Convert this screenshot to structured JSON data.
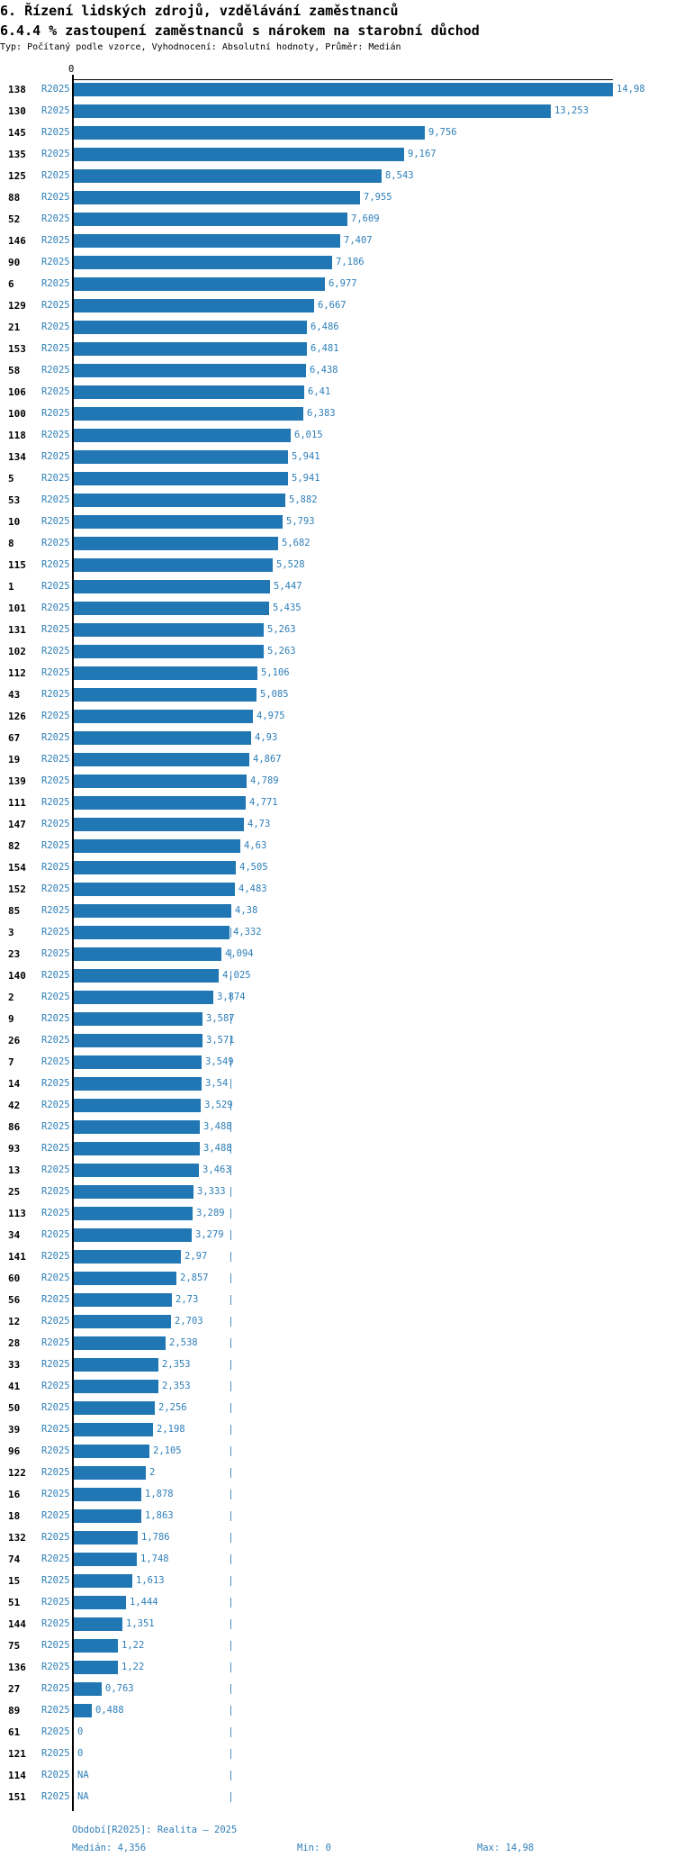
{
  "header": {
    "title_line1": "6. Řízení lidských zdrojů, vzdělávání zaměstnanců",
    "title_line2": "6.4.4 % zastoupení zaměstnanců s nárokem na starobní důchod",
    "meta": "Typ: Počítaný podle vzorce, Vyhodnocení: Absolutní hodnoty, Průměr: Medián"
  },
  "chart_data": {
    "type": "bar",
    "orientation": "horizontal",
    "axis_zero_label": "0",
    "xlim": [
      0,
      14.98
    ],
    "median_value": 4.356,
    "median_line": "dashed-vertical",
    "period_label": "R2025",
    "rows": [
      {
        "id": "138",
        "period": "R2025",
        "label": "14,98",
        "value": 14.98
      },
      {
        "id": "130",
        "period": "R2025",
        "label": "13,253",
        "value": 13.253
      },
      {
        "id": "145",
        "period": "R2025",
        "label": "9,756",
        "value": 9.756
      },
      {
        "id": "135",
        "period": "R2025",
        "label": "9,167",
        "value": 9.167
      },
      {
        "id": "125",
        "period": "R2025",
        "label": "8,543",
        "value": 8.543
      },
      {
        "id": "88",
        "period": "R2025",
        "label": "7,955",
        "value": 7.955
      },
      {
        "id": "52",
        "period": "R2025",
        "label": "7,609",
        "value": 7.609
      },
      {
        "id": "146",
        "period": "R2025",
        "label": "7,407",
        "value": 7.407
      },
      {
        "id": "90",
        "period": "R2025",
        "label": "7,186",
        "value": 7.186
      },
      {
        "id": "6",
        "period": "R2025",
        "label": "6,977",
        "value": 6.977
      },
      {
        "id": "129",
        "period": "R2025",
        "label": "6,667",
        "value": 6.667
      },
      {
        "id": "21",
        "period": "R2025",
        "label": "6,486",
        "value": 6.486
      },
      {
        "id": "153",
        "period": "R2025",
        "label": "6,481",
        "value": 6.481
      },
      {
        "id": "58",
        "period": "R2025",
        "label": "6,438",
        "value": 6.438
      },
      {
        "id": "106",
        "period": "R2025",
        "label": "6,41",
        "value": 6.41
      },
      {
        "id": "100",
        "period": "R2025",
        "label": "6,383",
        "value": 6.383
      },
      {
        "id": "118",
        "period": "R2025",
        "label": "6,015",
        "value": 6.015
      },
      {
        "id": "134",
        "period": "R2025",
        "label": "5,941",
        "value": 5.941
      },
      {
        "id": "5",
        "period": "R2025",
        "label": "5,941",
        "value": 5.941
      },
      {
        "id": "53",
        "period": "R2025",
        "label": "5,882",
        "value": 5.882
      },
      {
        "id": "10",
        "period": "R2025",
        "label": "5,793",
        "value": 5.793
      },
      {
        "id": "8",
        "period": "R2025",
        "label": "5,682",
        "value": 5.682
      },
      {
        "id": "115",
        "period": "R2025",
        "label": "5,528",
        "value": 5.528
      },
      {
        "id": "1",
        "period": "R2025",
        "label": "5,447",
        "value": 5.447
      },
      {
        "id": "101",
        "period": "R2025",
        "label": "5,435",
        "value": 5.435
      },
      {
        "id": "131",
        "period": "R2025",
        "label": "5,263",
        "value": 5.263
      },
      {
        "id": "102",
        "period": "R2025",
        "label": "5,263",
        "value": 5.263
      },
      {
        "id": "112",
        "period": "R2025",
        "label": "5,106",
        "value": 5.106
      },
      {
        "id": "43",
        "period": "R2025",
        "label": "5,085",
        "value": 5.085
      },
      {
        "id": "126",
        "period": "R2025",
        "label": "4,975",
        "value": 4.975
      },
      {
        "id": "67",
        "period": "R2025",
        "label": "4,93",
        "value": 4.93
      },
      {
        "id": "19",
        "period": "R2025",
        "label": "4,867",
        "value": 4.867
      },
      {
        "id": "139",
        "period": "R2025",
        "label": "4,789",
        "value": 4.789
      },
      {
        "id": "111",
        "period": "R2025",
        "label": "4,771",
        "value": 4.771
      },
      {
        "id": "147",
        "period": "R2025",
        "label": "4,73",
        "value": 4.73
      },
      {
        "id": "82",
        "period": "R2025",
        "label": "4,63",
        "value": 4.63
      },
      {
        "id": "154",
        "period": "R2025",
        "label": "4,505",
        "value": 4.505
      },
      {
        "id": "152",
        "period": "R2025",
        "label": "4,483",
        "value": 4.483
      },
      {
        "id": "85",
        "period": "R2025",
        "label": "4,38",
        "value": 4.38
      },
      {
        "id": "3",
        "period": "R2025",
        "label": "4,332",
        "value": 4.332
      },
      {
        "id": "23",
        "period": "R2025",
        "label": "4,094",
        "value": 4.094
      },
      {
        "id": "140",
        "period": "R2025",
        "label": "4,025",
        "value": 4.025
      },
      {
        "id": "2",
        "period": "R2025",
        "label": "3,874",
        "value": 3.874
      },
      {
        "id": "9",
        "period": "R2025",
        "label": "3,587",
        "value": 3.587
      },
      {
        "id": "26",
        "period": "R2025",
        "label": "3,571",
        "value": 3.571
      },
      {
        "id": "7",
        "period": "R2025",
        "label": "3,549",
        "value": 3.549
      },
      {
        "id": "14",
        "period": "R2025",
        "label": "3,54",
        "value": 3.54
      },
      {
        "id": "42",
        "period": "R2025",
        "label": "3,529",
        "value": 3.529
      },
      {
        "id": "86",
        "period": "R2025",
        "label": "3,488",
        "value": 3.488
      },
      {
        "id": "93",
        "period": "R2025",
        "label": "3,488",
        "value": 3.488
      },
      {
        "id": "13",
        "period": "R2025",
        "label": "3,463",
        "value": 3.463
      },
      {
        "id": "25",
        "period": "R2025",
        "label": "3,333",
        "value": 3.333
      },
      {
        "id": "113",
        "period": "R2025",
        "label": "3,289",
        "value": 3.289
      },
      {
        "id": "34",
        "period": "R2025",
        "label": "3,279",
        "value": 3.279
      },
      {
        "id": "141",
        "period": "R2025",
        "label": "2,97",
        "value": 2.97
      },
      {
        "id": "60",
        "period": "R2025",
        "label": "2,857",
        "value": 2.857
      },
      {
        "id": "56",
        "period": "R2025",
        "label": "2,73",
        "value": 2.73
      },
      {
        "id": "12",
        "period": "R2025",
        "label": "2,703",
        "value": 2.703
      },
      {
        "id": "28",
        "period": "R2025",
        "label": "2,538",
        "value": 2.538
      },
      {
        "id": "33",
        "period": "R2025",
        "label": "2,353",
        "value": 2.353
      },
      {
        "id": "41",
        "period": "R2025",
        "label": "2,353",
        "value": 2.353
      },
      {
        "id": "50",
        "period": "R2025",
        "label": "2,256",
        "value": 2.256
      },
      {
        "id": "39",
        "period": "R2025",
        "label": "2,198",
        "value": 2.198
      },
      {
        "id": "96",
        "period": "R2025",
        "label": "2,105",
        "value": 2.105
      },
      {
        "id": "122",
        "period": "R2025",
        "label": "2",
        "value": 2
      },
      {
        "id": "16",
        "period": "R2025",
        "label": "1,878",
        "value": 1.878
      },
      {
        "id": "18",
        "period": "R2025",
        "label": "1,863",
        "value": 1.863
      },
      {
        "id": "132",
        "period": "R2025",
        "label": "1,786",
        "value": 1.786
      },
      {
        "id": "74",
        "period": "R2025",
        "label": "1,748",
        "value": 1.748
      },
      {
        "id": "15",
        "period": "R2025",
        "label": "1,613",
        "value": 1.613
      },
      {
        "id": "51",
        "period": "R2025",
        "label": "1,444",
        "value": 1.444
      },
      {
        "id": "144",
        "period": "R2025",
        "label": "1,351",
        "value": 1.351
      },
      {
        "id": "75",
        "period": "R2025",
        "label": "1,22",
        "value": 1.22
      },
      {
        "id": "136",
        "period": "R2025",
        "label": "1,22",
        "value": 1.22
      },
      {
        "id": "27",
        "period": "R2025",
        "label": "0,763",
        "value": 0.763
      },
      {
        "id": "89",
        "period": "R2025",
        "label": "0,488",
        "value": 0.488
      },
      {
        "id": "61",
        "period": "R2025",
        "label": "0",
        "value": 0
      },
      {
        "id": "121",
        "period": "R2025",
        "label": "0",
        "value": 0
      },
      {
        "id": "114",
        "period": "R2025",
        "label": "NA",
        "value": null
      },
      {
        "id": "151",
        "period": "R2025",
        "label": "NA",
        "value": null
      }
    ]
  },
  "footer": {
    "period": "Období[R2025]: Realita – 2025",
    "median": "Medián: 4,356",
    "min": "Min: 0",
    "max": "Max: 14,98"
  },
  "colors": {
    "bar": "#2077b4",
    "value_text": "#2e7fb9",
    "median_line": "#4a90c2",
    "axis": "#000000",
    "row_id_text": "#000000"
  }
}
